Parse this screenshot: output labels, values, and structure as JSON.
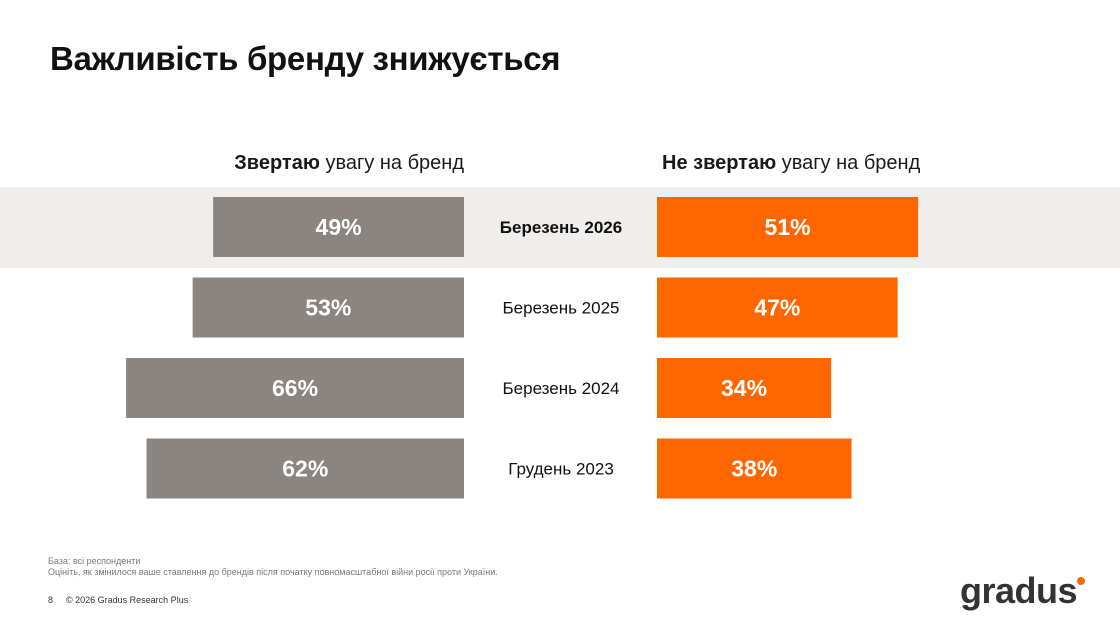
{
  "title": "Важливість бренду знижується",
  "headers": {
    "left_bold": "Звертаю",
    "left_rest": " увагу на бренд",
    "right_bold": "Не звертаю",
    "right_rest": " увагу на бренд"
  },
  "chart_data": {
    "type": "bar",
    "orientation": "horizontal-diverging",
    "categories": [
      "Березень 2026",
      "Березень 2025",
      "Березень 2024",
      "Грудень 2023"
    ],
    "highlighted_category": "Березень 2026",
    "series": [
      {
        "name": "Звертаю увагу на бренд",
        "values": [
          49,
          53,
          66,
          62
        ],
        "color": "#8a8580",
        "labels": [
          "49%",
          "53%",
          "66%",
          "62%"
        ]
      },
      {
        "name": "Не звертаю увагу на бренд",
        "values": [
          51,
          47,
          34,
          38
        ],
        "color": "#ff6600",
        "labels": [
          "51%",
          "47%",
          "34%",
          "38%"
        ]
      }
    ],
    "xlim": [
      0,
      100
    ]
  },
  "notes": {
    "base": "База: всі респонденти",
    "question": "Оцініть, як змінилося ваше ставлення до брендів після початку повномасштабної війни росії проти України."
  },
  "footer": {
    "page": "8",
    "copyright": "© 2026 Gradus Research Plus"
  },
  "logo": {
    "text": "gradus"
  }
}
